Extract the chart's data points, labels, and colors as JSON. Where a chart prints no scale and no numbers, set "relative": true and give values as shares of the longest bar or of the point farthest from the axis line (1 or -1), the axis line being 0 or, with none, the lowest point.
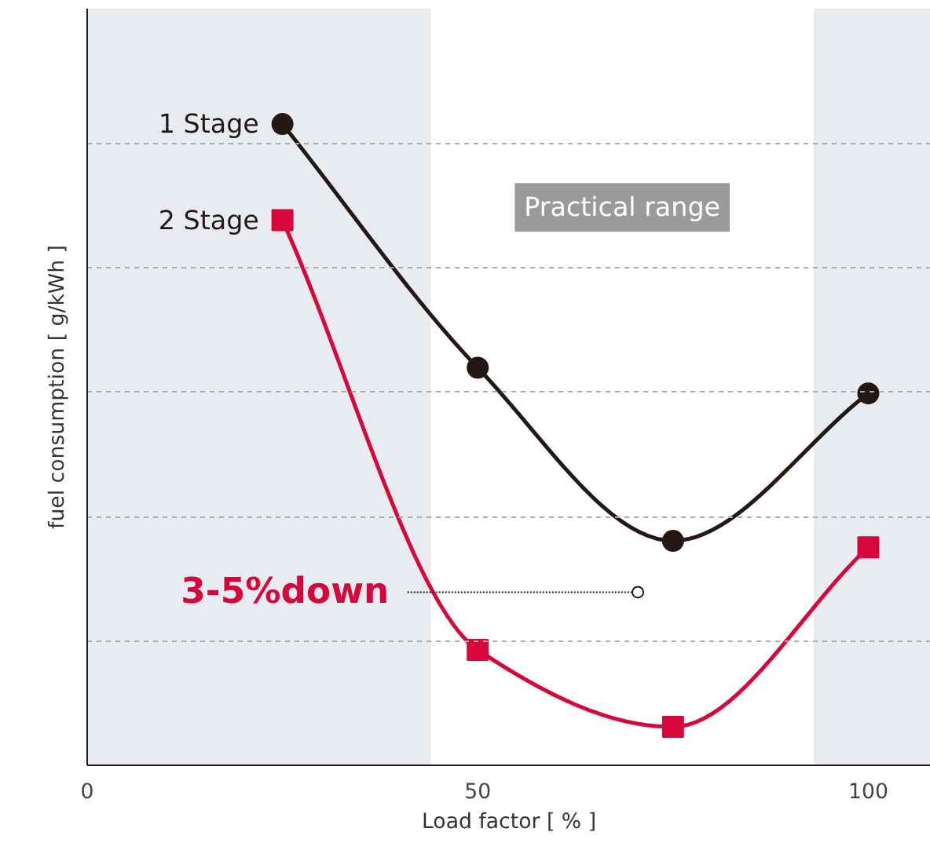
{
  "chart_data": {
    "type": "line",
    "relative": true,
    "xlabel": "Load factor [ % ]",
    "ylabel": "fuel consumption [ g/kWh ]",
    "x": [
      25,
      50,
      75,
      100
    ],
    "series": [
      {
        "name": "1 Stage",
        "color": "#231815",
        "marker": "circle",
        "values": [
          1,
          0.62,
          0.35,
          0.58
        ]
      },
      {
        "name": "2 Stage",
        "color": "#d7063b",
        "marker": "square",
        "values": [
          0.85,
          0.18,
          0.06,
          0.34
        ]
      }
    ],
    "xlim": [
      0,
      108
    ],
    "xticks": [
      0,
      50,
      100
    ],
    "grid": "y",
    "line_style": "solid",
    "bands": [
      {
        "axis": "x",
        "from": 0,
        "to": 44,
        "color": "#e8ebef"
      },
      {
        "axis": "x",
        "from": 93,
        "to": 108,
        "color": "#e8ebef"
      }
    ],
    "annotations": [
      "Practical range",
      "3-5%down"
    ]
  }
}
